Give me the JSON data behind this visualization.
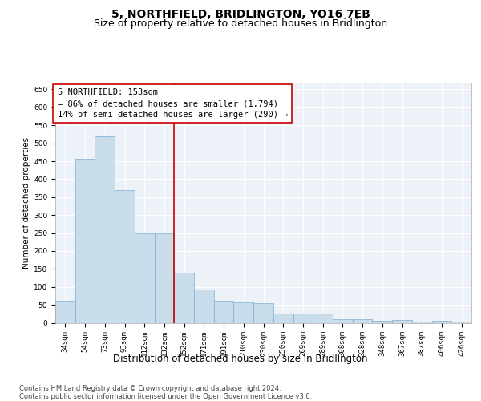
{
  "title": "5, NORTHFIELD, BRIDLINGTON, YO16 7EB",
  "subtitle": "Size of property relative to detached houses in Bridlington",
  "xlabel": "Distribution of detached houses by size in Bridlington",
  "ylabel": "Number of detached properties",
  "bar_color": "#c9dcea",
  "bar_edgecolor": "#7aafd4",
  "background_color": "#edf2f9",
  "grid_color": "#ffffff",
  "vline_color": "#cc0000",
  "annotation_text": "5 NORTHFIELD: 153sqm\n← 86% of detached houses are smaller (1,794)\n14% of semi-detached houses are larger (290) →",
  "categories": [
    "34sqm",
    "54sqm",
    "73sqm",
    "93sqm",
    "112sqm",
    "132sqm",
    "152sqm",
    "171sqm",
    "191sqm",
    "210sqm",
    "230sqm",
    "250sqm",
    "269sqm",
    "289sqm",
    "308sqm",
    "328sqm",
    "348sqm",
    "367sqm",
    "387sqm",
    "406sqm",
    "426sqm"
  ],
  "values": [
    62,
    457,
    520,
    370,
    248,
    248,
    140,
    93,
    62,
    58,
    55,
    26,
    26,
    26,
    10,
    11,
    6,
    8,
    3,
    5,
    3
  ],
  "vline_index": 6,
  "ylim": [
    0,
    670
  ],
  "yticks": [
    0,
    50,
    100,
    150,
    200,
    250,
    300,
    350,
    400,
    450,
    500,
    550,
    600,
    650
  ],
  "footnote": "Contains HM Land Registry data © Crown copyright and database right 2024.\nContains public sector information licensed under the Open Government Licence v3.0.",
  "fig_width": 6.0,
  "fig_height": 5.0,
  "title_fontsize": 10,
  "subtitle_fontsize": 9,
  "xlabel_fontsize": 8.5,
  "ylabel_fontsize": 7.5,
  "tick_fontsize": 6.5,
  "annotation_fontsize": 7.5,
  "footnote_fontsize": 6
}
